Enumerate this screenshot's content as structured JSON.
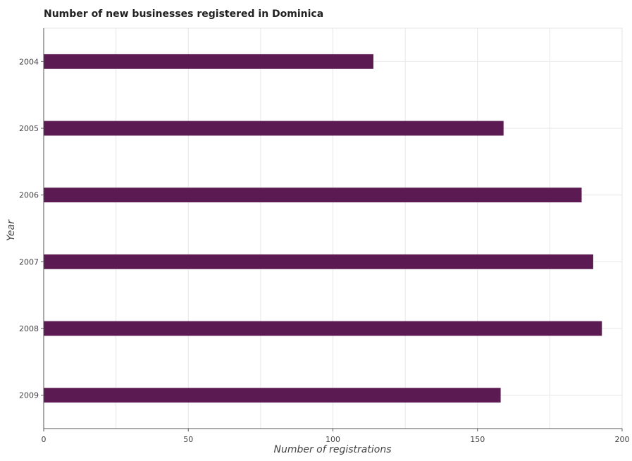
{
  "chart_data": {
    "type": "bar",
    "orientation": "horizontal",
    "title": "Number of new businesses registered in Dominica",
    "xlabel": "Number of registrations",
    "ylabel": "Year",
    "categories": [
      "2004",
      "2005",
      "2006",
      "2007",
      "2008",
      "2009"
    ],
    "values": [
      114,
      159,
      186,
      190,
      193,
      158
    ],
    "xlim": [
      0,
      200
    ],
    "xticks": [
      0,
      50,
      100,
      150,
      200
    ],
    "bar_color": "#5c1a52",
    "grid": true
  }
}
